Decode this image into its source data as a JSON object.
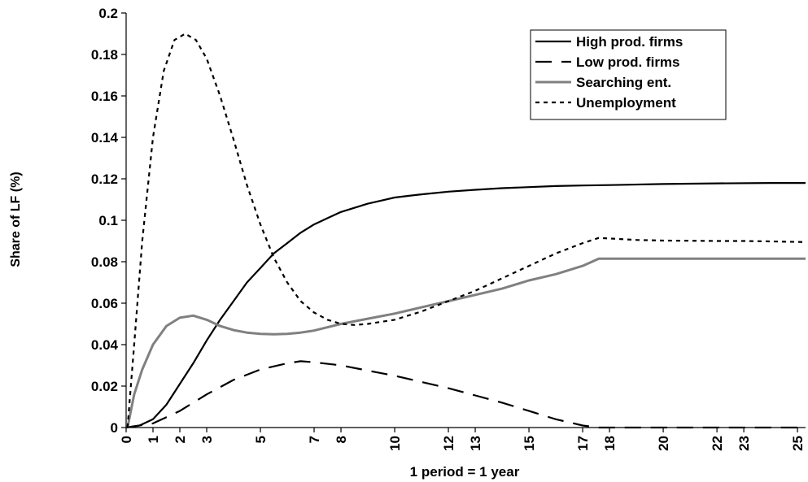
{
  "chart_data": {
    "type": "line",
    "title": "",
    "xlabel": "1 period =  1 year",
    "ylabel": "Share of LF (%)",
    "xlim": [
      0,
      25.3
    ],
    "ylim": [
      0,
      0.2
    ],
    "x_tick_values": [
      0,
      1,
      2,
      3,
      5,
      7,
      8,
      10,
      12,
      13,
      15,
      17,
      18,
      20,
      22,
      23,
      25
    ],
    "x_tick_labels": [
      "0",
      "1",
      "2",
      "3",
      "5",
      "7",
      "8",
      "10",
      "12",
      "13",
      "15",
      "17",
      "18",
      "20",
      "22",
      "23",
      "25"
    ],
    "y_tick_values": [
      0,
      0.02,
      0.04,
      0.06,
      0.08,
      0.1,
      0.12,
      0.14,
      0.16,
      0.18,
      0.2
    ],
    "y_tick_labels": [
      "0",
      "0.02",
      "0.04",
      "0.06",
      "0.08",
      "0.1",
      "0.12",
      "0.14",
      "0.16",
      "0.18",
      "0.2"
    ],
    "grid": false,
    "legend_position": "top-right",
    "series": [
      {
        "name": "High prod. firms",
        "color": "#000000",
        "dash": "solid",
        "x": [
          0,
          0.5,
          1,
          1.5,
          2,
          2.5,
          3,
          3.5,
          4,
          4.5,
          5,
          5.5,
          6,
          6.5,
          7,
          7.5,
          8,
          8.5,
          9,
          9.5,
          10,
          11,
          12,
          13,
          14,
          15,
          16,
          17,
          18,
          20,
          22,
          24,
          25.3
        ],
        "y": [
          0,
          0.001,
          0.004,
          0.011,
          0.021,
          0.031,
          0.042,
          0.052,
          0.061,
          0.07,
          0.077,
          0.084,
          0.089,
          0.094,
          0.098,
          0.101,
          0.104,
          0.106,
          0.108,
          0.1095,
          0.111,
          0.1125,
          0.1138,
          0.1147,
          0.1155,
          0.116,
          0.1165,
          0.1168,
          0.117,
          0.1175,
          0.1178,
          0.118,
          0.118
        ]
      },
      {
        "name": "Low prod. firms",
        "color": "#000000",
        "dash": "long-dash",
        "x": [
          0,
          1,
          2,
          3,
          4,
          5,
          6,
          6.5,
          7,
          8,
          9,
          10,
          11,
          12,
          13,
          14,
          15,
          16,
          17,
          17.6,
          18,
          20,
          22,
          24,
          25.3
        ],
        "y": [
          0,
          0.002,
          0.008,
          0.016,
          0.023,
          0.028,
          0.031,
          0.032,
          0.0315,
          0.03,
          0.0275,
          0.025,
          0.022,
          0.019,
          0.0155,
          0.012,
          0.008,
          0.004,
          0.001,
          0,
          0,
          0,
          0,
          0,
          0
        ]
      },
      {
        "name": "Searching ent.",
        "color": "#808080",
        "dash": "solid",
        "x": [
          0.05,
          0.3,
          0.6,
          1,
          1.5,
          2,
          2.5,
          3,
          3.5,
          4,
          4.5,
          5,
          5.5,
          6,
          6.5,
          7,
          8,
          9,
          10,
          11,
          12,
          13,
          14,
          15,
          16,
          17,
          17.6,
          18,
          20,
          22,
          24,
          25.3
        ],
        "y": [
          0,
          0.016,
          0.028,
          0.04,
          0.049,
          0.053,
          0.054,
          0.052,
          0.049,
          0.047,
          0.0458,
          0.0452,
          0.045,
          0.0452,
          0.0458,
          0.0468,
          0.05,
          0.0525,
          0.055,
          0.058,
          0.061,
          0.064,
          0.067,
          0.071,
          0.074,
          0.078,
          0.0815,
          0.0815,
          0.0815,
          0.0815,
          0.0815,
          0.0815
        ]
      },
      {
        "name": "Unemployment",
        "color": "#000000",
        "dash": "dotted",
        "x": [
          0.05,
          0.3,
          0.6,
          1,
          1.4,
          1.8,
          2.2,
          2.6,
          3,
          3.5,
          4,
          4.5,
          5,
          5.5,
          6,
          6.5,
          7,
          7.5,
          8,
          8.5,
          9,
          10,
          11,
          12,
          13,
          14,
          15,
          16,
          17,
          17.6,
          18,
          19,
          20,
          21,
          22,
          23,
          24,
          25.3
        ],
        "y": [
          0,
          0.04,
          0.09,
          0.14,
          0.172,
          0.187,
          0.19,
          0.187,
          0.178,
          0.16,
          0.139,
          0.117,
          0.098,
          0.082,
          0.07,
          0.061,
          0.0555,
          0.052,
          0.05,
          0.0495,
          0.05,
          0.052,
          0.056,
          0.061,
          0.066,
          0.072,
          0.078,
          0.084,
          0.089,
          0.0915,
          0.0912,
          0.0905,
          0.0902,
          0.0901,
          0.09,
          0.09,
          0.0898,
          0.0895
        ]
      }
    ]
  }
}
